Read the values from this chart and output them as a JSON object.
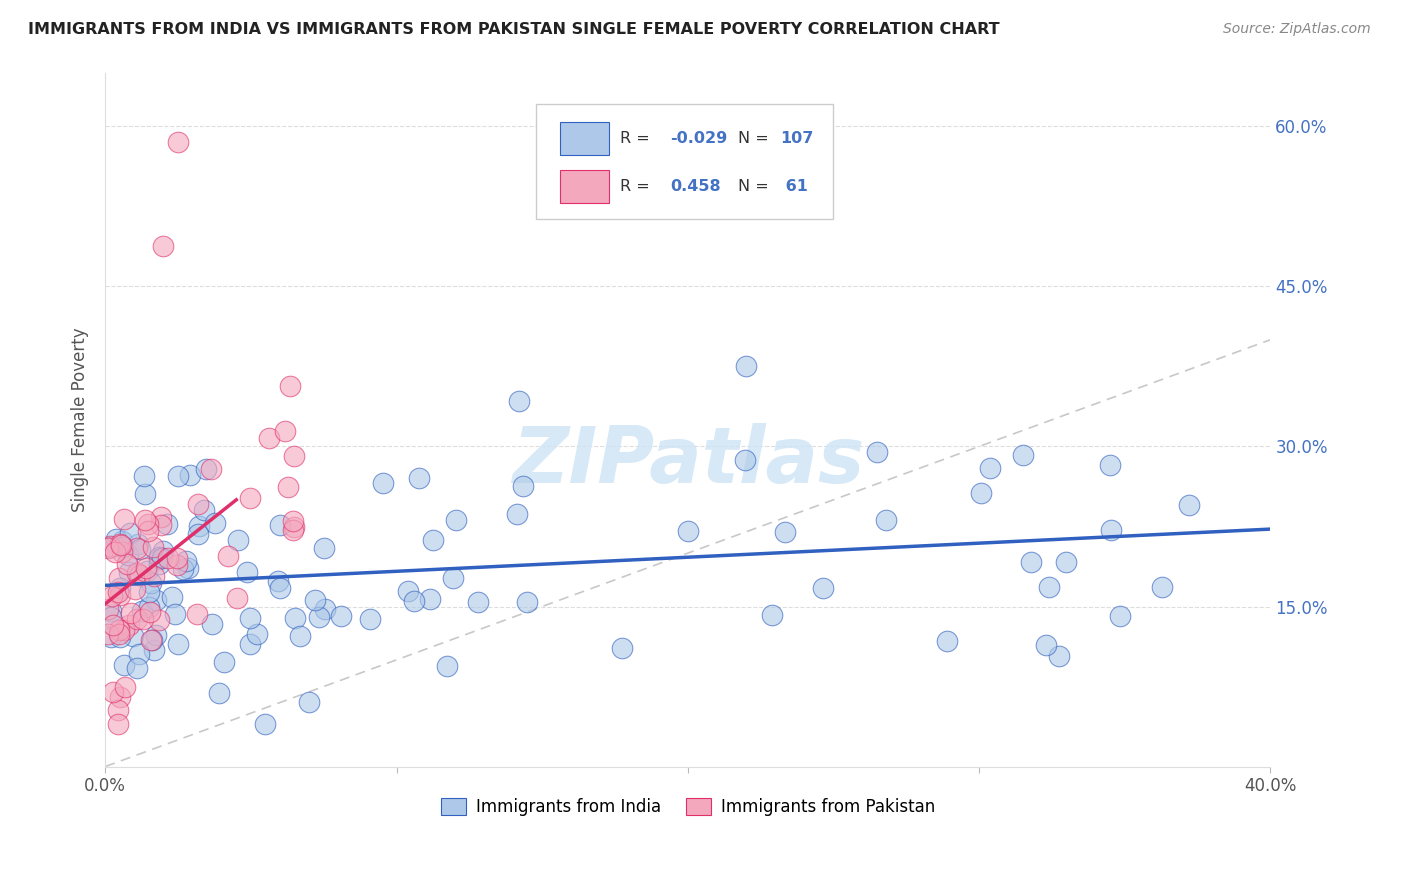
{
  "title": "IMMIGRANTS FROM INDIA VS IMMIGRANTS FROM PAKISTAN SINGLE FEMALE POVERTY CORRELATION CHART",
  "source": "Source: ZipAtlas.com",
  "ylabel": "Single Female Poverty",
  "legend_india": "Immigrants from India",
  "legend_pakistan": "Immigrants from Pakistan",
  "R_india": -0.029,
  "N_india": 107,
  "R_pakistan": 0.458,
  "N_pakistan": 61,
  "color_india": "#adc8e8",
  "color_pakistan": "#f4a8be",
  "color_india_line": "#3060c0",
  "color_pakistan_line": "#e0306a",
  "watermark_color": "#d0e4f5",
  "xlim": [
    0.0,
    0.4
  ],
  "ylim": [
    0.0,
    0.65
  ],
  "ytick_vals": [
    0.15,
    0.3,
    0.45,
    0.6
  ],
  "ytick_labels": [
    "15.0%",
    "30.0%",
    "45.0%",
    "60.0%"
  ],
  "xtick_vals": [
    0.0,
    0.1,
    0.2,
    0.3,
    0.4
  ],
  "xtick_labels": [
    "0.0%",
    "",
    "",
    "",
    "40.0%"
  ]
}
